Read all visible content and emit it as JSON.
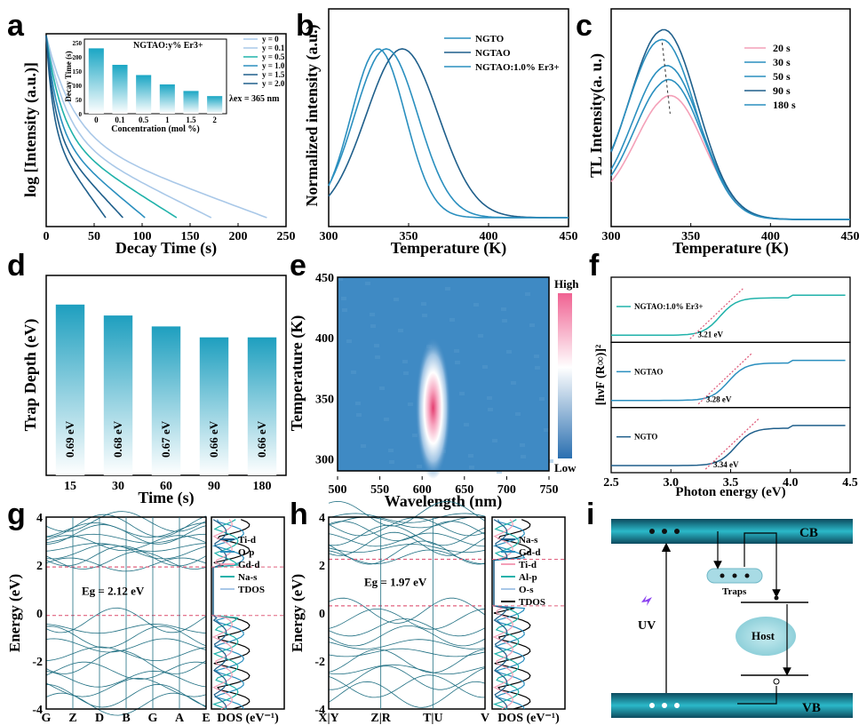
{
  "panels": {
    "a": {
      "label": "a"
    },
    "b": {
      "label": "b"
    },
    "c": {
      "label": "c"
    },
    "d": {
      "label": "d"
    },
    "e": {
      "label": "e"
    },
    "f": {
      "label": "f"
    },
    "g": {
      "label": "g"
    },
    "h": {
      "label": "h"
    },
    "i": {
      "label": "i"
    }
  },
  "colors": {
    "dark": "#1f5f8b",
    "mid": "#2a8fbf",
    "teal": "#20b2aa",
    "light": "#a9c8e8",
    "pink": "#f4a0b8",
    "red_dash": "#e0607e"
  },
  "chart_data": [
    {
      "id": "a",
      "type": "line",
      "title": "",
      "xlabel": "Decay Time (s)",
      "ylabel": "log [Intensity (a.u.)]",
      "xlim": [
        0,
        250
      ],
      "xticks": [
        "0",
        "50",
        "100",
        "150",
        "200",
        "250"
      ],
      "annotation": "λex = 365 nm",
      "series": [
        {
          "name": "y = 0",
          "end": 230
        },
        {
          "name": "y = 0.1",
          "end": 172
        },
        {
          "name": "y = 0.5",
          "end": 136
        },
        {
          "name": "y = 1.0",
          "end": 103
        },
        {
          "name": "y = 1.5",
          "end": 80
        },
        {
          "name": "y = 2.0",
          "end": 62
        }
      ],
      "inset": {
        "type": "bar",
        "title": "NGTAO:y% Er3+",
        "xlabel": "Concentration (mol %)",
        "ylabel": "Decay Time (s)",
        "categories": [
          "0",
          "0.1",
          "0.5",
          "1",
          "1.5",
          "2"
        ],
        "values": [
          230,
          172,
          136,
          103,
          80,
          62
        ],
        "ylim": [
          0,
          250
        ],
        "yticks": [
          "0",
          "50",
          "100",
          "150",
          "200",
          "250"
        ]
      }
    },
    {
      "id": "b",
      "type": "line",
      "xlabel": "Temperature (K)",
      "ylabel": "Normalized intensity (a.u.)",
      "xlim": [
        300,
        450
      ],
      "xticks": [
        "300",
        "350",
        "400",
        "450"
      ],
      "series": [
        {
          "name": "NGTO",
          "peak": 331,
          "width": 24
        },
        {
          "name": "NGTAO",
          "peak": 346,
          "width": 32
        },
        {
          "name": "NGTAO:1.0% Er3+",
          "peak": 336,
          "width": 28
        }
      ]
    },
    {
      "id": "c",
      "type": "line",
      "xlabel": "Temperature (K)",
      "ylabel": "TL Intensity(a. u.)",
      "xlim": [
        300,
        450
      ],
      "xticks": [
        "300",
        "350",
        "400",
        "450"
      ],
      "series": [
        {
          "name": "20 s",
          "peak": 337,
          "amp": 0.62
        },
        {
          "name": "30 s",
          "peak": 336,
          "amp": 0.7
        },
        {
          "name": "50 s",
          "peak": 335,
          "amp": 0.77
        },
        {
          "name": "90 s",
          "peak": 333,
          "amp": 0.95
        },
        {
          "name": "180 s",
          "peak": 332,
          "amp": 0.9
        }
      ]
    },
    {
      "id": "d",
      "type": "bar",
      "xlabel": "Time (s)",
      "ylabel": "Trap Depth (eV)",
      "categories": [
        "15",
        "30",
        "60",
        "90",
        "180"
      ],
      "values": [
        0.69,
        0.68,
        0.67,
        0.66,
        0.66
      ],
      "value_labels": [
        "0.69 eV",
        "0.68 eV",
        "0.67 eV",
        "0.66 eV",
        "0.66 eV"
      ]
    },
    {
      "id": "e",
      "type": "heatmap",
      "xlabel": "Wavelength (nm)",
      "ylabel": "Temperature (K)",
      "xlim": [
        500,
        750
      ],
      "ylim": [
        290,
        450
      ],
      "xticks": [
        "500",
        "550",
        "600",
        "650",
        "700",
        "750"
      ],
      "yticks": [
        "300",
        "350",
        "400",
        "450"
      ],
      "hotspot": {
        "x": 613,
        "y": 342
      },
      "colorbar": {
        "high": "High",
        "low": "Low"
      }
    },
    {
      "id": "f",
      "type": "line",
      "xlabel": "Photon energy (eV)",
      "ylabel": "[hνF (R∞)]²",
      "xlim": [
        2.5,
        4.5
      ],
      "xticks": [
        "2.5",
        "3.0",
        "3.5",
        "4.0",
        "4.5"
      ],
      "series": [
        {
          "name": "NGTAO:1.0% Er3+",
          "gap": "3.21 eV",
          "edge": 3.21
        },
        {
          "name": "NGTAO",
          "gap": "3.28 eV",
          "edge": 3.28
        },
        {
          "name": "NGTO",
          "gap": "3.34 eV",
          "edge": 3.34
        }
      ]
    },
    {
      "id": "g",
      "type": "line",
      "ylabel": "Energy (eV)",
      "ylim": [
        -4,
        4
      ],
      "yticks": [
        "4",
        "2",
        "0",
        "-2",
        "-4"
      ],
      "kpoints": [
        "G",
        "Z",
        "D",
        "B",
        "G",
        "A",
        "E"
      ],
      "gap_label": "Eg = 2.12 eV",
      "dos_xlabel": "DOS (eV⁻¹)",
      "dos_legend": [
        "Ti-d",
        "O-p",
        "Gd-d",
        "Na-s",
        "TDOS"
      ]
    },
    {
      "id": "h",
      "type": "line",
      "ylabel": "Energy (eV)",
      "ylim": [
        -4,
        4
      ],
      "yticks": [
        "4",
        "2",
        "0",
        "-2",
        "-4"
      ],
      "kpoints": [
        "X|Y",
        "Z|R",
        "T|U",
        "V"
      ],
      "gap_label": "Eg = 1.97 eV",
      "dos_xlabel": "DOS (eV⁻¹)",
      "dos_legend": [
        "Na-s",
        "Gd-d",
        "Ti-d",
        "Al-p",
        "O-s",
        "TDOS"
      ]
    }
  ],
  "diagram_i": {
    "cb": "CB",
    "vb": "VB",
    "traps": "Traps",
    "host": "Host",
    "uv": "UV"
  }
}
